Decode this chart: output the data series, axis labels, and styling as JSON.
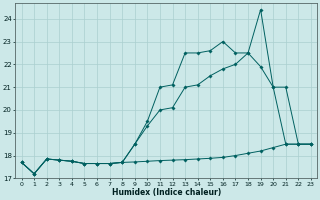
{
  "xlabel": "Humidex (Indice chaleur)",
  "bg_color": "#cce8e8",
  "grid_color": "#aacfcf",
  "line_color": "#006060",
  "xlim": [
    -0.5,
    23.5
  ],
  "ylim": [
    17.0,
    24.7
  ],
  "yticks": [
    17,
    18,
    19,
    20,
    21,
    22,
    23,
    24
  ],
  "xticks": [
    0,
    1,
    2,
    3,
    4,
    5,
    6,
    7,
    8,
    9,
    10,
    11,
    12,
    13,
    14,
    15,
    16,
    17,
    18,
    19,
    20,
    21,
    22,
    23
  ],
  "line1_x": [
    0,
    1,
    2,
    3,
    4,
    5,
    6,
    7,
    8,
    9,
    10,
    11,
    12,
    13,
    14,
    15,
    16,
    17,
    18,
    19,
    20,
    21,
    22,
    23
  ],
  "line1_y": [
    17.7,
    17.2,
    17.85,
    17.8,
    17.75,
    17.65,
    17.65,
    17.65,
    17.7,
    17.72,
    17.75,
    17.78,
    17.8,
    17.82,
    17.85,
    17.88,
    17.92,
    18.0,
    18.1,
    18.2,
    18.35,
    18.5,
    18.5,
    18.5
  ],
  "line2_x": [
    0,
    1,
    2,
    3,
    4,
    5,
    6,
    7,
    8,
    9,
    10,
    11,
    12,
    13,
    14,
    15,
    16,
    17,
    18,
    19,
    20,
    21,
    22,
    23
  ],
  "line2_y": [
    17.7,
    17.2,
    17.85,
    17.8,
    17.75,
    17.65,
    17.65,
    17.65,
    17.7,
    18.5,
    19.3,
    20.0,
    20.1,
    21.0,
    21.1,
    21.5,
    21.8,
    22.0,
    22.5,
    21.9,
    21.0,
    21.0,
    18.5,
    18.5
  ],
  "line3_x": [
    0,
    1,
    2,
    3,
    4,
    5,
    6,
    7,
    8,
    9,
    10,
    11,
    12,
    13,
    14,
    15,
    16,
    17,
    18,
    19,
    20,
    21,
    22,
    23
  ],
  "line3_y": [
    17.7,
    17.2,
    17.85,
    17.8,
    17.75,
    17.65,
    17.65,
    17.65,
    17.7,
    18.5,
    19.5,
    21.0,
    21.1,
    22.5,
    22.5,
    22.6,
    23.0,
    22.5,
    22.5,
    24.4,
    21.0,
    18.5,
    18.5,
    18.5
  ]
}
